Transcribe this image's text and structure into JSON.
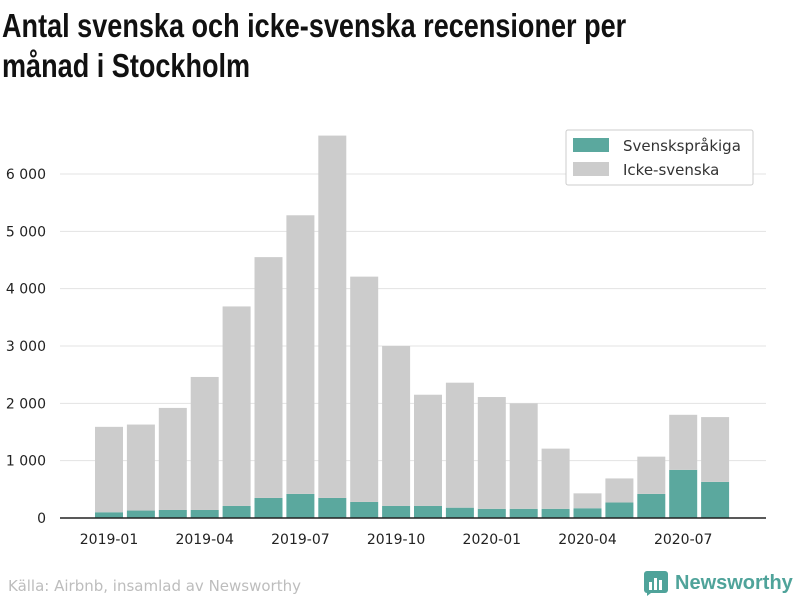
{
  "chart_data": {
    "type": "bar",
    "stacked": true,
    "title": "Antal svenska och icke-svenska recensioner per månad i Stockholm",
    "categories": [
      "2019-01",
      "2019-02",
      "2019-03",
      "2019-04",
      "2019-05",
      "2019-06",
      "2019-07",
      "2019-08",
      "2019-09",
      "2019-10",
      "2019-11",
      "2019-12",
      "2020-01",
      "2020-02",
      "2020-03",
      "2020-04",
      "2020-05",
      "2020-06",
      "2020-07",
      "2020-08"
    ],
    "x_tick_labels": [
      "2019-01",
      "2019-04",
      "2019-07",
      "2019-10",
      "2020-01",
      "2020-04",
      "2020-07"
    ],
    "y_tick_labels": [
      "0",
      "1 000",
      "2 000",
      "3 000",
      "4 000",
      "5 000",
      "6 000"
    ],
    "y_ticks": [
      0,
      1000,
      2000,
      3000,
      4000,
      5000,
      6000
    ],
    "ylim": [
      0,
      6800
    ],
    "series": [
      {
        "name": "Svenskspråkiga",
        "color": "#5ba89e",
        "values": [
          100,
          130,
          140,
          140,
          210,
          350,
          420,
          350,
          280,
          210,
          210,
          180,
          160,
          160,
          160,
          170,
          270,
          420,
          840,
          630
        ]
      },
      {
        "name": "Icke-svenska",
        "color": "#cccccc",
        "values": [
          1490,
          1500,
          1780,
          2320,
          3480,
          4200,
          4860,
          6320,
          3930,
          2790,
          1940,
          2180,
          1950,
          1840,
          1050,
          260,
          420,
          650,
          960,
          1130
        ]
      }
    ],
    "legend_position": "top-right",
    "grid": true,
    "source": "Källa: Airbnb, insamlad av Newsworthy",
    "logo_text": "Newsworthy"
  }
}
